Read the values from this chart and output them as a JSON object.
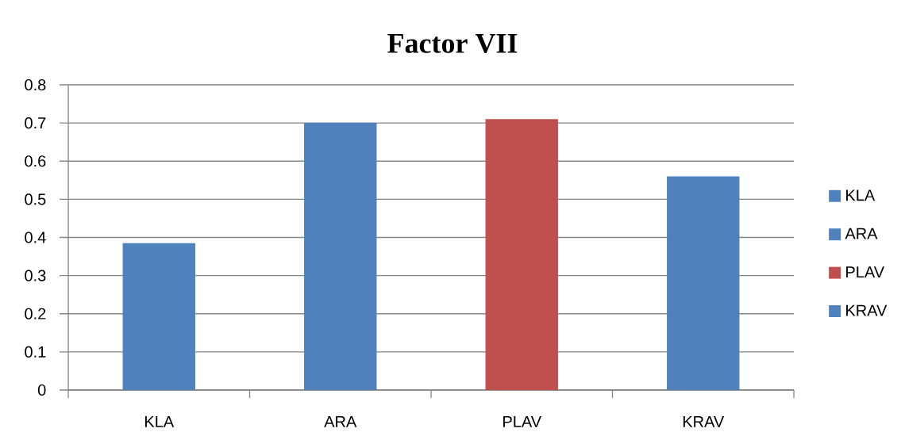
{
  "chart_data": {
    "type": "bar",
    "title": "Factor VII",
    "categories": [
      "KLA",
      "ARA",
      "PLAV",
      "KRAV"
    ],
    "series": [
      {
        "name": "KLA",
        "color": "#4f81bd",
        "values": [
          0.385,
          null,
          null,
          null
        ]
      },
      {
        "name": "ARA",
        "color": "#4f81bd",
        "values": [
          null,
          0.7,
          null,
          null
        ]
      },
      {
        "name": "PLAV",
        "color": "#c0504d",
        "values": [
          null,
          null,
          0.71,
          null
        ]
      },
      {
        "name": "KRAV",
        "color": "#4f81bd",
        "values": [
          null,
          null,
          null,
          0.56
        ]
      }
    ],
    "stacked": true,
    "ylim": [
      0,
      0.8
    ],
    "yticks": [
      0,
      0.1,
      0.2,
      0.3,
      0.4,
      0.5,
      0.6,
      0.7,
      0.8
    ],
    "grid": "y",
    "legend": "right"
  }
}
